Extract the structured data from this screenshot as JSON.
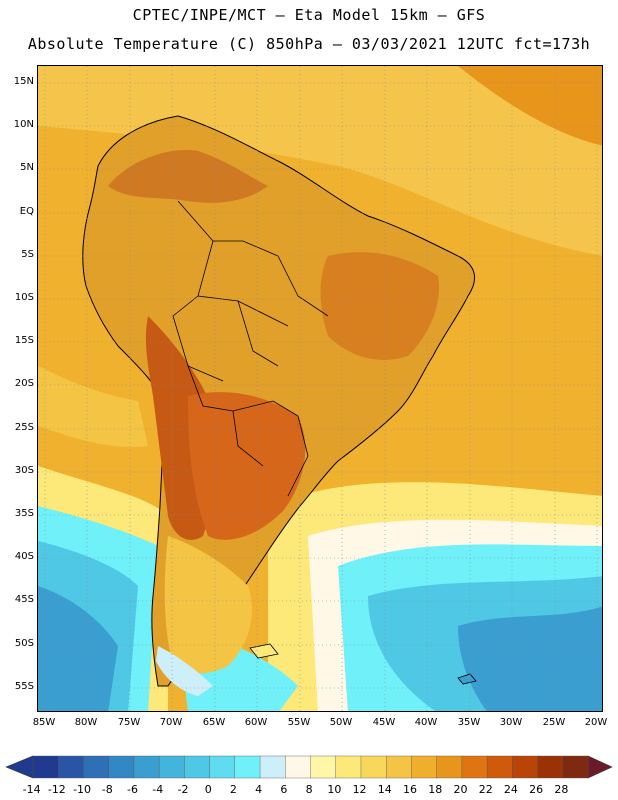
{
  "header": {
    "line1": "CPTEC/INPE/MCT –  Eta Model 15km – GFS",
    "line2": "Absolute Temperature (C) 850hPa – 03/03/2021 12UTC fct=173h"
  },
  "map": {
    "lat_labels": [
      "15N",
      "10N",
      "5N",
      "EQ",
      "5S",
      "10S",
      "15S",
      "20S",
      "25S",
      "30S",
      "35S",
      "40S",
      "45S",
      "50S",
      "55S"
    ],
    "lon_labels": [
      "85W",
      "80W",
      "75W",
      "70W",
      "65W",
      "60W",
      "55W",
      "50W",
      "45W",
      "40W",
      "35W",
      "30W",
      "25W",
      "20W"
    ]
  },
  "colorbar": {
    "labels": [
      "-14",
      "-12",
      "-10",
      "-8",
      "-6",
      "-4",
      "-2",
      "0",
      "2",
      "4",
      "6",
      "8",
      "10",
      "12",
      "14",
      "16",
      "18",
      "20",
      "22",
      "24",
      "26",
      "28"
    ],
    "colors": [
      "#1f3a8f",
      "#2a55a6",
      "#2e6fb5",
      "#3387c4",
      "#3a9fd0",
      "#43b4dc",
      "#4fc8e6",
      "#5fdcef",
      "#70f0f8",
      "#cdeffa",
      "#fff8e6",
      "#fff6a8",
      "#fce97a",
      "#f8d85a",
      "#f4c444",
      "#efaf2c",
      "#e8951c",
      "#df7412",
      "#cf5a0c",
      "#b84408",
      "#9a3206",
      "#7e2a10"
    ]
  }
}
